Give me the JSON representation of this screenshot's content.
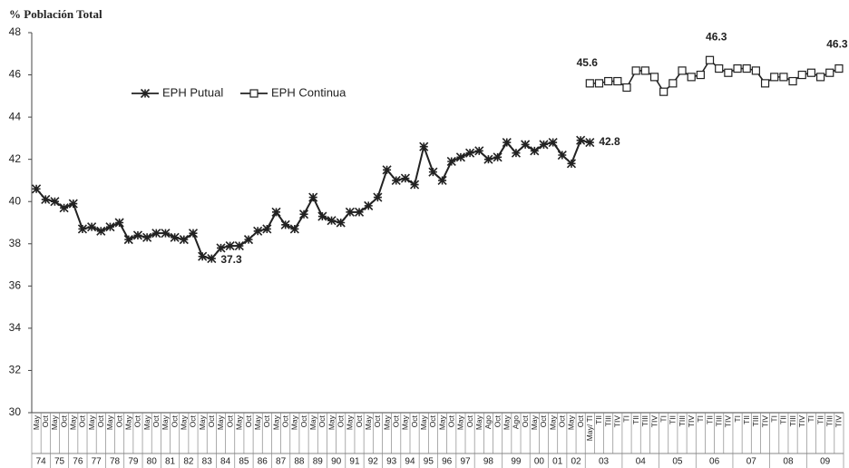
{
  "chart_data": {
    "type": "line",
    "title": "%  Población Total",
    "categories": [
      "May",
      "Oct",
      "May",
      "Oct",
      "May",
      "Oct",
      "May",
      "Oct",
      "May",
      "Oct",
      "May",
      "Oct",
      "May",
      "Oct",
      "May",
      "Oct",
      "May",
      "Oct",
      "May",
      "Oct",
      "May",
      "Oct",
      "May",
      "Oct",
      "May",
      "Oct",
      "May",
      "Oct",
      "May",
      "Oct",
      "May",
      "Oct",
      "May",
      "Oct",
      "May",
      "Oct",
      "May",
      "Oct",
      "May",
      "Oct",
      "May",
      "Oct",
      "May",
      "Oct",
      "May",
      "Oct",
      "May",
      "Oct",
      "May",
      "Ago",
      "Oct",
      "May",
      "Ago",
      "Oct",
      "May",
      "Oct",
      "May",
      "Oct",
      "May",
      "Oct",
      "May/ TI",
      "TII",
      "TIII",
      "TIV",
      "TI",
      "TII",
      "TIII",
      "TIV",
      "TI",
      "TII",
      "TIII",
      "TIV",
      "TI",
      "TII",
      "TIII",
      "TIV",
      "TI",
      "TII",
      "TIII",
      "TIV",
      "TI",
      "TII",
      "TIII",
      "TIV",
      "TI",
      "TII",
      "TIII",
      "TIV"
    ],
    "groups": [
      "74",
      null,
      "75",
      null,
      "76",
      null,
      "77",
      null,
      "78",
      null,
      "79",
      null,
      "80",
      null,
      "81",
      null,
      "82",
      null,
      "83",
      null,
      "84",
      null,
      "85",
      null,
      "86",
      null,
      "87",
      null,
      "88",
      null,
      "89",
      null,
      "90",
      null,
      "91",
      null,
      "92",
      null,
      "93",
      null,
      "94",
      null,
      "95",
      null,
      "96",
      null,
      "97",
      null,
      "98",
      null,
      null,
      "99",
      null,
      null,
      "00",
      null,
      "01",
      null,
      "02",
      null,
      "03",
      null,
      null,
      null,
      "04",
      null,
      null,
      null,
      "05",
      null,
      null,
      null,
      "06",
      null,
      null,
      null,
      "07",
      null,
      null,
      null,
      "08",
      null,
      null,
      null,
      "09",
      null,
      null,
      null
    ],
    "series": [
      {
        "name": "EPH Putual",
        "color": "#222222",
        "marker": "star",
        "values": [
          40.6,
          40.1,
          40.0,
          39.7,
          39.9,
          38.7,
          38.8,
          38.6,
          38.8,
          39.0,
          38.2,
          38.4,
          38.3,
          38.5,
          38.5,
          38.3,
          38.2,
          38.5,
          37.4,
          37.3,
          37.8,
          37.9,
          37.9,
          38.2,
          38.6,
          38.7,
          39.5,
          38.9,
          38.7,
          39.4,
          40.2,
          39.3,
          39.1,
          39.0,
          39.5,
          39.5,
          39.8,
          40.2,
          41.5,
          41.0,
          41.1,
          40.8,
          42.6,
          41.4,
          41.0,
          41.9,
          42.1,
          42.3,
          42.4,
          42.0,
          42.1,
          42.8,
          42.3,
          42.7,
          42.4,
          42.7,
          42.8,
          42.2,
          41.8,
          42.9,
          42.8,
          null,
          null,
          null,
          null,
          null,
          null,
          null,
          null,
          null,
          null,
          null,
          null,
          null,
          null,
          null,
          null,
          null,
          null,
          null,
          null,
          null,
          null,
          null,
          null,
          null,
          null,
          null
        ],
        "value_labels": [
          null,
          null,
          null,
          null,
          null,
          null,
          null,
          null,
          null,
          null,
          null,
          null,
          null,
          null,
          null,
          null,
          null,
          null,
          null,
          "37.3",
          null,
          null,
          null,
          null,
          null,
          null,
          null,
          null,
          null,
          null,
          null,
          null,
          null,
          null,
          null,
          null,
          null,
          null,
          null,
          null,
          null,
          null,
          null,
          null,
          null,
          null,
          null,
          null,
          null,
          null,
          null,
          null,
          null,
          null,
          null,
          null,
          null,
          null,
          null,
          null,
          "42.8",
          null,
          null,
          null,
          null,
          null,
          null,
          null,
          null,
          null,
          null,
          null,
          null,
          null,
          null,
          null,
          null,
          null,
          null,
          null,
          null,
          null,
          null,
          null,
          null,
          null,
          null,
          null
        ]
      },
      {
        "name": "EPH Continua",
        "color": "#222222",
        "marker": "square",
        "values": [
          null,
          null,
          null,
          null,
          null,
          null,
          null,
          null,
          null,
          null,
          null,
          null,
          null,
          null,
          null,
          null,
          null,
          null,
          null,
          null,
          null,
          null,
          null,
          null,
          null,
          null,
          null,
          null,
          null,
          null,
          null,
          null,
          null,
          null,
          null,
          null,
          null,
          null,
          null,
          null,
          null,
          null,
          null,
          null,
          null,
          null,
          null,
          null,
          null,
          null,
          null,
          null,
          null,
          null,
          null,
          null,
          null,
          null,
          null,
          null,
          45.6,
          45.6,
          45.7,
          45.7,
          45.4,
          46.2,
          46.2,
          45.9,
          45.2,
          45.6,
          46.2,
          45.9,
          46.0,
          46.7,
          46.3,
          46.1,
          46.3,
          46.3,
          46.2,
          45.6,
          45.9,
          45.9,
          45.7,
          46.0,
          46.1,
          45.9,
          46.1,
          46.3
        ],
        "value_labels": [
          null,
          null,
          null,
          null,
          null,
          null,
          null,
          null,
          null,
          null,
          null,
          null,
          null,
          null,
          null,
          null,
          null,
          null,
          null,
          null,
          null,
          null,
          null,
          null,
          null,
          null,
          null,
          null,
          null,
          null,
          null,
          null,
          null,
          null,
          null,
          null,
          null,
          null,
          null,
          null,
          null,
          null,
          null,
          null,
          null,
          null,
          null,
          null,
          null,
          null,
          null,
          null,
          null,
          null,
          null,
          null,
          null,
          null,
          null,
          null,
          "45.6",
          null,
          null,
          null,
          null,
          null,
          null,
          null,
          null,
          null,
          null,
          null,
          null,
          null,
          "46.3",
          null,
          null,
          null,
          null,
          null,
          null,
          null,
          null,
          null,
          null,
          null,
          null,
          "46.3"
        ]
      }
    ],
    "ylim": [
      30,
      48
    ],
    "yticks": [
      30,
      32,
      34,
      36,
      38,
      40,
      42,
      44,
      46,
      48
    ],
    "grid": false,
    "legend": "top-left"
  }
}
